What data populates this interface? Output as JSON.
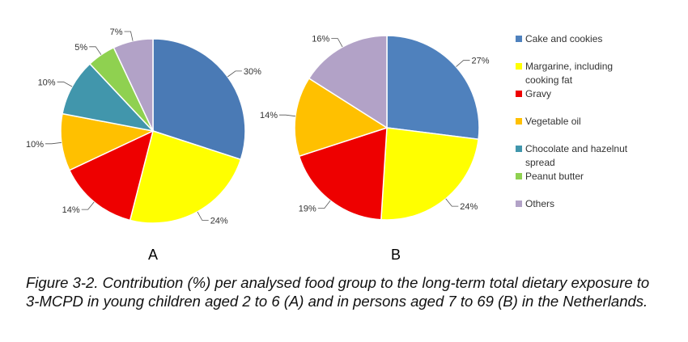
{
  "chart_data": [
    {
      "type": "pie",
      "panel_label": "A",
      "slices": [
        {
          "category": "Cake and cookies",
          "value": 30,
          "label": "30%",
          "color": "#4a7ab5"
        },
        {
          "category": "Margarine, including cooking fat",
          "value": 24,
          "label": "24%",
          "color": "#ffff00"
        },
        {
          "category": "Gravy",
          "value": 14,
          "label": "14%",
          "color": "#ee0000"
        },
        {
          "category": "Vegetable oil",
          "value": 10,
          "label": "10%",
          "color": "#ffc000"
        },
        {
          "category": "Chocolate and hazelnut spread",
          "value": 10,
          "label": "10%",
          "color": "#4196ac"
        },
        {
          "category": "Peanut butter",
          "value": 5,
          "label": "5%",
          "color": "#8fd150"
        },
        {
          "category": "Others",
          "value": 7,
          "label": "7%",
          "color": "#b2a2c7"
        }
      ]
    },
    {
      "type": "pie",
      "panel_label": "B",
      "slices": [
        {
          "category": "Cake and cookies",
          "value": 27,
          "label": "27%",
          "color": "#4f81bd"
        },
        {
          "category": "Margarine, including cooking fat",
          "value": 24,
          "label": "24%",
          "color": "#ffff00"
        },
        {
          "category": "Gravy",
          "value": 19,
          "label": "19%",
          "color": "#ee0000"
        },
        {
          "category": "Vegetable oil",
          "value": 14,
          "label": "14%",
          "color": "#ffc000"
        },
        {
          "category": "Others",
          "value": 16,
          "label": "16%",
          "color": "#b2a2c7"
        }
      ]
    }
  ],
  "legend": [
    {
      "label_lines": [
        "Cake and cookies"
      ],
      "color": "#4f81bd"
    },
    {
      "label_lines": [
        "Margarine, including",
        "cooking fat"
      ],
      "color": "#ffff00"
    },
    {
      "label_lines": [
        "Gravy"
      ],
      "color": "#ee0000"
    },
    {
      "label_lines": [
        "Vegetable oil"
      ],
      "color": "#ffc000"
    },
    {
      "label_lines": [
        "Chocolate and hazelnut",
        "spread"
      ],
      "color": "#4196ac"
    },
    {
      "label_lines": [
        "Peanut butter"
      ],
      "color": "#8fd150"
    },
    {
      "label_lines": [
        "Others"
      ],
      "color": "#b2a2c7"
    }
  ],
  "caption": "Figure 3-2. Contribution (%) per analysed food group to the long-term total dietary exposure to 3-MCPD in young children aged 2 to 6 (A) and in persons aged 7 to 69 (B) in the Netherlands."
}
